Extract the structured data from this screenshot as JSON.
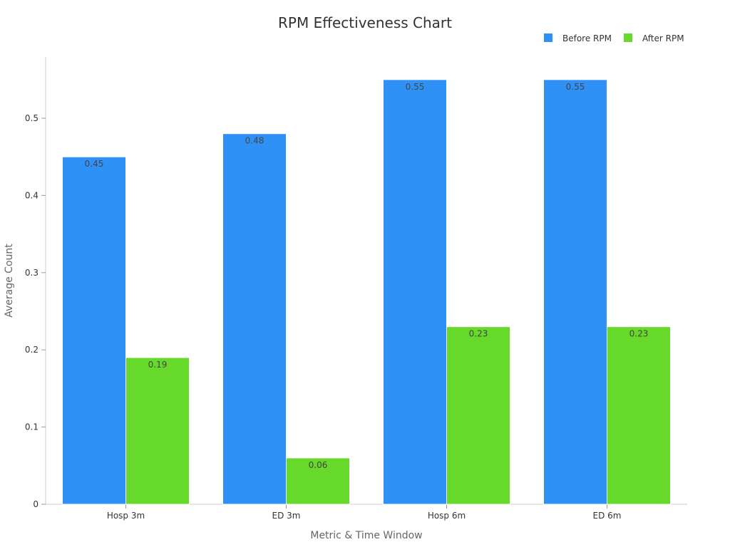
{
  "chart_data": {
    "type": "bar",
    "title": "RPM Effectiveness Chart",
    "xlabel": "Metric & Time Window",
    "ylabel": "Average Count",
    "categories": [
      "Hosp 3m",
      "ED 3m",
      "Hosp 6m",
      "ED 6m"
    ],
    "series": [
      {
        "name": "Before RPM",
        "values": [
          0.45,
          0.48,
          0.55,
          0.55
        ],
        "color": "#2f91f5"
      },
      {
        "name": "After RPM",
        "values": [
          0.19,
          0.06,
          0.23,
          0.23
        ],
        "color": "#66d92a"
      }
    ],
    "ylim": [
      0,
      0.578
    ],
    "yticks": [
      0,
      0.1,
      0.2,
      0.3,
      0.4,
      0.5
    ],
    "ytick_labels": [
      "0",
      "0.1",
      "0.2",
      "0.3",
      "0.4",
      "0.5"
    ],
    "grid": false,
    "legend_position": "top-right"
  }
}
